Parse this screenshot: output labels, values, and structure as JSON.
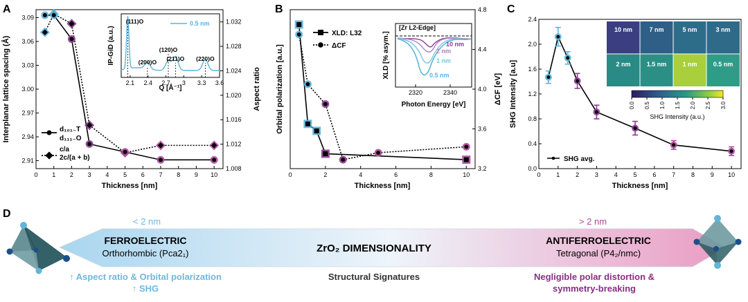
{
  "panels": {
    "A": {
      "label": "A",
      "xlabel": "Thickness [nm]",
      "ylabel": "Interplanar lattice spacing (Å)",
      "y2label": "Aspect ratio",
      "xlim": [
        0,
        10.5
      ],
      "ylim": [
        2.9,
        3.1
      ],
      "y2lim": [
        1.008,
        1.034
      ],
      "xticks": [
        0,
        1,
        2,
        3,
        4,
        5,
        6,
        7,
        8,
        9,
        10
      ],
      "yticks": [
        2.91,
        2.94,
        2.97,
        3.0,
        3.03,
        3.06,
        3.09
      ],
      "y2ticks": [
        1.008,
        1.012,
        1.016,
        1.02,
        1.024,
        1.028,
        1.032
      ],
      "series": [
        {
          "name": "d₁₀₁₋T / d₁₁₁₋O",
          "style": "solid",
          "x": [
            0.5,
            1,
            2,
            3,
            5,
            7,
            10
          ],
          "y": [
            3.093,
            3.093,
            3.063,
            2.931,
            2.921,
            2.911,
            2.911
          ],
          "axis": "left"
        },
        {
          "name": "c/a / 2c/(a + b)",
          "style": "dotted",
          "x": [
            0.5,
            1,
            2,
            3,
            5,
            7,
            10
          ],
          "y": [
            1.0303,
            1.0333,
            1.0317,
            1.0151,
            1.0106,
            1.0118,
            1.0118
          ],
          "axis": "right"
        }
      ],
      "legend": [
        "d₁₀₁₋T",
        "d₁₁₁₋O",
        "c/a",
        "2c/(a + b)"
      ]
    },
    "A_inset": {
      "xlabel": "Q [Å⁻¹]",
      "ylabel": "IP-GiD (a.u.)",
      "xlim": [
        1.95,
        3.6
      ],
      "xticks": [
        2.1,
        2.4,
        2.7,
        3.0,
        3.3,
        3.6
      ],
      "xtick_labels": [
        "2.1",
        "2.4",
        "2.7",
        "3",
        "3.3",
        "3.6"
      ],
      "legend": "0.5 nm",
      "peaks": [
        {
          "q": 2.06,
          "label": "(111)O"
        },
        {
          "q": 2.39,
          "label": "(200)O"
        },
        {
          "q": 2.74,
          "label": "(120)O"
        },
        {
          "q": 2.86,
          "label": "(211)O"
        },
        {
          "q": 3.36,
          "label": "(220)O"
        }
      ]
    },
    "B": {
      "label": "B",
      "xlabel": "Thickness [nm]",
      "ylabel": "Orbital polarization [a.u.]",
      "y2label": "ΔCF [eV]",
      "xlim": [
        0,
        10.5
      ],
      "y2lim": [
        3.2,
        4.8
      ],
      "y2ticks": [
        3.2,
        3.6,
        4.0,
        4.4,
        4.8
      ],
      "xticks": [
        0,
        2,
        4,
        6,
        8,
        10
      ],
      "series": [
        {
          "name": "XLD: L32",
          "style": "solid",
          "x": [
            0.5,
            1,
            1.5,
            2,
            10
          ],
          "y": [
            4.65,
            3.65,
            3.58,
            3.35,
            3.29
          ]
        },
        {
          "name": "ΔCF",
          "style": "dotted",
          "x": [
            0.5,
            1,
            2,
            3,
            5,
            10
          ],
          "y": [
            4.55,
            4.05,
            3.85,
            3.29,
            3.36,
            3.42
          ]
        }
      ],
      "legend": [
        "XLD: L32",
        "ΔCF"
      ]
    },
    "B_inset": {
      "title": "[Zr L2-Edge]",
      "xlabel": "Photon Energy [eV]",
      "ylabel": "XLD [% asym.]",
      "xticks": [
        2320,
        2340
      ],
      "legend": [
        "10 nm",
        "2 nm",
        "1 nm",
        "0.5 nm"
      ]
    },
    "C": {
      "label": "C",
      "xlabel": "Thickness [nm]",
      "ylabel": "SHG Intensity [a.u]",
      "xlim": [
        0,
        10.5
      ],
      "ylim": [
        0,
        2.4
      ],
      "xticks": [
        0,
        1,
        2,
        3,
        4,
        5,
        6,
        7,
        8,
        9,
        10
      ],
      "yticks": [
        0.0,
        0.4,
        0.8,
        1.2,
        1.6,
        2.0,
        2.4
      ],
      "ytick_labels": [
        "0.0",
        "0.4",
        "0.8",
        "1.2",
        "1.6",
        "2.0",
        "2.4"
      ],
      "x": [
        0.5,
        1,
        1.5,
        2,
        3,
        5,
        7,
        10
      ],
      "y": [
        1.47,
        2.12,
        1.78,
        1.41,
        0.91,
        0.65,
        0.38,
        0.28
      ],
      "err": [
        0.1,
        0.15,
        0.1,
        0.12,
        0.11,
        0.11,
        0.07,
        0.07
      ],
      "legend": "SHG avg.",
      "maps": [
        "10 nm",
        "7 nm",
        "5 nm",
        "3 nm",
        "2 nm",
        "1.5 nm",
        "1 nm",
        "0.5 nm"
      ],
      "cbar_ticks": [
        "0.0",
        "0.5",
        "1.0",
        "1.5",
        "2.0",
        "2.5",
        "3.0"
      ],
      "cbar_label": "SHG Intensity (a.u.)"
    },
    "D": {
      "label": "D",
      "left_top": "< 2 nm",
      "right_top": "> 2 nm",
      "left_title": "FERROELECTRIC",
      "left_sub": "Orthorhombic (Pca2₁)",
      "center_title": "ZrO₂ DIMENSIONALITY",
      "right_title": "ANTIFERROELECTRIC",
      "right_sub": "Tetragonal (P4₂/nmc)",
      "bottom_left_1": "↑ Aspect ratio & Orbital polarization",
      "bottom_left_2": "↑ SHG",
      "bottom_center": "Structural Signatures",
      "bottom_right_1": "Negligible polar distortion &",
      "bottom_right_2": "symmetry-breaking"
    }
  },
  "colors": {
    "blue": "#5ab4dc",
    "light_blue": "#9ed2ea",
    "purple": "#8a3c8e",
    "magenta": "#b04a9c",
    "pink": "#e9a6c6"
  }
}
